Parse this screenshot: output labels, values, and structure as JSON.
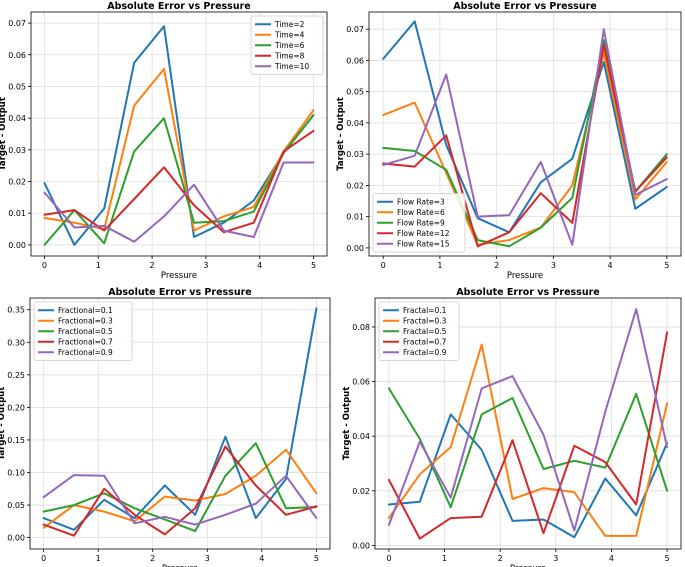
{
  "chart_data": [
    {
      "type": "line",
      "title": "Absolute Error vs Pressure",
      "xlabel": "Pressure",
      "ylabel": "Target - Output",
      "xlim": [
        -0.25,
        5.25
      ],
      "ylim": [
        -0.0035,
        0.0735
      ],
      "xticks": [
        0,
        1,
        2,
        3,
        4,
        5
      ],
      "yticks": [
        0.0,
        0.01,
        0.02,
        0.03,
        0.04,
        0.05,
        0.06,
        0.07
      ],
      "ytick_labels": [
        "0.00",
        "0.01",
        "0.02",
        "0.03",
        "0.04",
        "0.05",
        "0.06",
        "0.07"
      ],
      "grid": true,
      "legend_position": "top-right",
      "x": [
        0,
        0.556,
        1.111,
        1.667,
        2.222,
        2.778,
        3.333,
        3.889,
        4.444,
        5
      ],
      "series": [
        {
          "name": "Time=2",
          "color": "#1f77b4",
          "values": [
            0.0195,
            0.0,
            0.0115,
            0.0575,
            0.069,
            0.0025,
            0.007,
            0.014,
            0.029,
            0.041
          ]
        },
        {
          "name": "Time=4",
          "color": "#ff7f0e",
          "values": [
            0.0085,
            0.007,
            0.005,
            0.044,
            0.0555,
            0.0045,
            0.009,
            0.012,
            0.0295,
            0.0425
          ]
        },
        {
          "name": "Time=6",
          "color": "#2ca02c",
          "values": [
            0.0,
            0.011,
            0.0005,
            0.0295,
            0.04,
            0.007,
            0.0075,
            0.0105,
            0.029,
            0.041
          ]
        },
        {
          "name": "Time=8",
          "color": "#d62728",
          "values": [
            0.0095,
            0.011,
            0.0045,
            0.0145,
            0.0245,
            0.0125,
            0.004,
            0.007,
            0.0295,
            0.036
          ]
        },
        {
          "name": "Time=10",
          "color": "#9467bd",
          "values": [
            0.0165,
            0.0055,
            0.006,
            0.001,
            0.009,
            0.019,
            0.0045,
            0.0025,
            0.026,
            0.026
          ]
        }
      ]
    },
    {
      "type": "line",
      "title": "Absolute Error vs Pressure",
      "xlabel": "Pressure",
      "ylabel": "Target - Output",
      "xlim": [
        -0.25,
        5.25
      ],
      "ylim": [
        -0.0026,
        0.0755
      ],
      "xticks": [
        0,
        1,
        2,
        3,
        4,
        5
      ],
      "yticks": [
        0.0,
        0.01,
        0.02,
        0.03,
        0.04,
        0.05,
        0.06,
        0.07
      ],
      "ytick_labels": [
        "0.00",
        "0.01",
        "0.02",
        "0.03",
        "0.04",
        "0.05",
        "0.06",
        "0.07"
      ],
      "grid": true,
      "legend_position": "bottom-left",
      "x": [
        0,
        0.556,
        1.111,
        1.667,
        2.222,
        2.778,
        3.333,
        3.889,
        4.444,
        5
      ],
      "series": [
        {
          "name": "Flow Rate=3",
          "color": "#1f77b4",
          "values": [
            0.0605,
            0.0725,
            0.033,
            0.0095,
            0.005,
            0.021,
            0.0285,
            0.0595,
            0.0125,
            0.0195
          ]
        },
        {
          "name": "Flow Rate=6",
          "color": "#ff7f0e",
          "values": [
            0.0425,
            0.0465,
            0.024,
            0.001,
            0.0025,
            0.0065,
            0.02,
            0.0625,
            0.0155,
            0.0275
          ]
        },
        {
          "name": "Flow Rate=9",
          "color": "#2ca02c",
          "values": [
            0.032,
            0.031,
            0.025,
            0.0025,
            0.0005,
            0.0065,
            0.016,
            0.0665,
            0.018,
            0.03
          ]
        },
        {
          "name": "Flow Rate=12",
          "color": "#d62728",
          "values": [
            0.027,
            0.026,
            0.036,
            0.0005,
            0.005,
            0.0175,
            0.008,
            0.065,
            0.018,
            0.029
          ]
        },
        {
          "name": "Flow Rate=15",
          "color": "#9467bd",
          "values": [
            0.0265,
            0.0295,
            0.0555,
            0.01,
            0.0105,
            0.0275,
            0.001,
            0.07,
            0.017,
            0.022
          ]
        }
      ]
    },
    {
      "type": "line",
      "title": "Absolute Error vs Pressure",
      "xlabel": "Pressure",
      "ylabel": "Target - Output",
      "xlim": [
        -0.25,
        5.25
      ],
      "ylim": [
        -0.0175,
        0.368
      ],
      "xticks": [
        0,
        1,
        2,
        3,
        4,
        5
      ],
      "yticks": [
        0.0,
        0.05,
        0.1,
        0.15,
        0.2,
        0.25,
        0.3,
        0.35
      ],
      "ytick_labels": [
        "0.00",
        "0.05",
        "0.10",
        "0.15",
        "0.20",
        "0.25",
        "0.30",
        "0.35"
      ],
      "grid": true,
      "legend_position": "top-left",
      "x": [
        0,
        0.556,
        1.111,
        1.667,
        2.222,
        2.778,
        3.333,
        3.889,
        4.444,
        5
      ],
      "series": [
        {
          "name": "Fractional=0.1",
          "color": "#1f77b4",
          "values": [
            0.03,
            0.012,
            0.058,
            0.03,
            0.08,
            0.035,
            0.155,
            0.03,
            0.09,
            0.352
          ]
        },
        {
          "name": "Fractional=0.3",
          "color": "#ff7f0e",
          "values": [
            0.015,
            0.05,
            0.04,
            0.025,
            0.063,
            0.057,
            0.067,
            0.095,
            0.135,
            0.068
          ]
        },
        {
          "name": "Fractional=0.5",
          "color": "#2ca02c",
          "values": [
            0.04,
            0.05,
            0.068,
            0.045,
            0.028,
            0.01,
            0.095,
            0.145,
            0.045,
            0.047
          ]
        },
        {
          "name": "Fractional=0.7",
          "color": "#d62728",
          "values": [
            0.02,
            0.003,
            0.075,
            0.035,
            0.005,
            0.045,
            0.14,
            0.08,
            0.035,
            0.048
          ]
        },
        {
          "name": "Fractional=0.9",
          "color": "#9467bd",
          "values": [
            0.062,
            0.096,
            0.095,
            0.022,
            0.032,
            0.02,
            0.035,
            0.052,
            0.095,
            0.03
          ]
        }
      ]
    },
    {
      "type": "line",
      "title": "Absolute Error vs Pressure",
      "xlabel": "Pressure",
      "ylabel": "Target - Output",
      "xlim": [
        -0.25,
        5.25
      ],
      "ylim": [
        -0.0013,
        0.0906
      ],
      "xticks": [
        0,
        1,
        2,
        3,
        4,
        5
      ],
      "yticks": [
        0.0,
        0.02,
        0.04,
        0.06,
        0.08
      ],
      "ytick_labels": [
        "0.00",
        "0.02",
        "0.04",
        "0.06",
        "0.08"
      ],
      "grid": true,
      "legend_position": "top-left",
      "x": [
        0,
        0.556,
        1.111,
        1.667,
        2.222,
        2.778,
        3.333,
        3.889,
        4.444,
        5
      ],
      "series": [
        {
          "name": "Fractal=0.1",
          "color": "#1f77b4",
          "values": [
            0.015,
            0.016,
            0.048,
            0.035,
            0.009,
            0.0095,
            0.003,
            0.0245,
            0.011,
            0.0375
          ]
        },
        {
          "name": "Fractal=0.3",
          "color": "#ff7f0e",
          "values": [
            0.01,
            0.026,
            0.036,
            0.0735,
            0.017,
            0.021,
            0.0195,
            0.0035,
            0.0035,
            0.052
          ]
        },
        {
          "name": "Fractal=0.5",
          "color": "#2ca02c",
          "values": [
            0.0575,
            0.039,
            0.014,
            0.048,
            0.054,
            0.028,
            0.031,
            0.0285,
            0.0555,
            0.02
          ]
        },
        {
          "name": "Fractal=0.7",
          "color": "#d62728",
          "values": [
            0.024,
            0.0025,
            0.01,
            0.0105,
            0.0385,
            0.0045,
            0.0365,
            0.0305,
            0.015,
            0.078
          ]
        },
        {
          "name": "Fractal=0.9",
          "color": "#9467bd",
          "values": [
            0.0075,
            0.038,
            0.0175,
            0.0575,
            0.062,
            0.0405,
            0.0055,
            0.049,
            0.0865,
            0.036
          ]
        }
      ]
    }
  ]
}
